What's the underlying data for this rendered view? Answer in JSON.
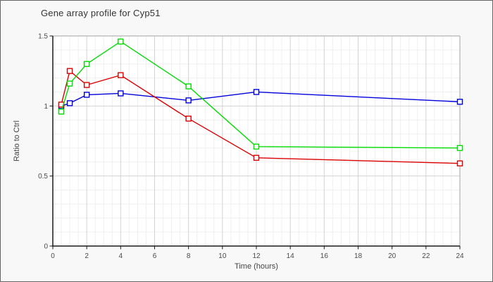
{
  "window": {
    "background_color": "#f8f8f8",
    "border_color": "#666666",
    "plot_background_color": "#ffffff"
  },
  "chart_data": {
    "type": "line",
    "title": "Gene array profile for Cyp51",
    "xlabel": "Time (hours)",
    "ylabel": "Ratio to Ctrl",
    "xlim": [
      0,
      24
    ],
    "ylim": [
      0,
      1.5
    ],
    "x_ticks": [
      0,
      2,
      4,
      6,
      8,
      10,
      12,
      14,
      16,
      18,
      20,
      22,
      24
    ],
    "y_ticks": [
      0,
      0.5,
      1,
      1.5
    ],
    "x_minor_step": 0.5,
    "y_minor_step": 0.1,
    "grid": true,
    "legend_position": "none",
    "marker": "open-square",
    "x": [
      0.5,
      1,
      2,
      4,
      8,
      12,
      24
    ],
    "series": [
      {
        "name": "blue",
        "color": "#0000dd",
        "values": [
          1.0,
          1.02,
          1.08,
          1.09,
          1.04,
          1.1,
          1.03
        ]
      },
      {
        "name": "red",
        "color": "#dd0000",
        "values": [
          1.01,
          1.25,
          1.15,
          1.22,
          0.91,
          0.63,
          0.59
        ]
      },
      {
        "name": "green",
        "color": "#00dd00",
        "values": [
          0.96,
          1.16,
          1.3,
          1.46,
          1.14,
          0.71,
          0.7
        ]
      }
    ],
    "colors": {
      "major_grid": "#d3d3d3",
      "minor_grid": "#efefef",
      "plot_frame": "#b3b3b3",
      "axis": "#1a1a1a"
    }
  }
}
